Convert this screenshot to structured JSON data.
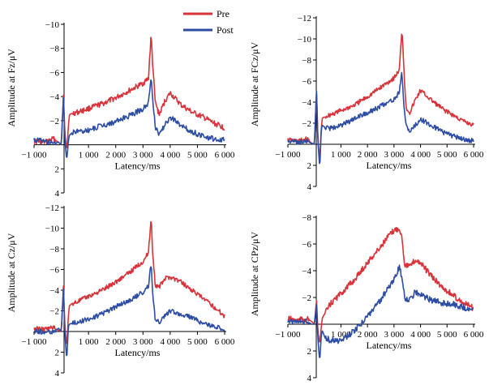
{
  "legend": {
    "items": [
      {
        "label": "Pre",
        "color": "#d8333a"
      },
      {
        "label": "Post",
        "color": "#2c4da3"
      }
    ]
  },
  "colors": {
    "pre": "#d8333a",
    "post": "#2c4da3",
    "axis": "#000000"
  },
  "chart_data": [
    {
      "type": "line",
      "panel": "Fz",
      "xlabel": "Latency/ms",
      "ylabel": "Amplitude at Fz/μV",
      "xlim": [
        -1000,
        6000
      ],
      "ylim": [
        4,
        -10
      ],
      "y_inverted": true,
      "x_ticks": [
        -1000,
        1000,
        2000,
        3000,
        4000,
        5000,
        6000
      ],
      "x_tick_labels": [
        "−1 000",
        "1 000",
        "2 000",
        "3 000",
        "4 000",
        "5 000",
        "6 000"
      ],
      "y_ticks": [
        -10,
        -8,
        -6,
        -4,
        -2,
        2,
        4
      ],
      "y_tick_labels": [
        "−10",
        "−8",
        "−6",
        "−4",
        "−2",
        "2",
        "4"
      ],
      "series": [
        {
          "name": "Pre",
          "x": [
            -1000,
            -600,
            -300,
            -100,
            0,
            80,
            130,
            200,
            260,
            300,
            400,
            600,
            1000,
            1500,
            2000,
            2500,
            3000,
            3200,
            3300,
            3350,
            3450,
            3600,
            3800,
            4000,
            4400,
            4800,
            5200,
            5600,
            6000
          ],
          "y": [
            -0.3,
            -0.2,
            -0.5,
            -0.2,
            0,
            -4.2,
            -1,
            0.5,
            -1.5,
            -2.5,
            -2.6,
            -2.7,
            -3,
            -3.4,
            -3.9,
            -4.5,
            -5.1,
            -5.5,
            -9.1,
            -7,
            -3.5,
            -2.5,
            -3.6,
            -4.3,
            -3.3,
            -2.7,
            -2.3,
            -1.8,
            -1.4
          ]
        },
        {
          "name": "Post",
          "x": [
            -1000,
            -600,
            -300,
            -100,
            0,
            80,
            130,
            200,
            260,
            300,
            400,
            600,
            1000,
            1500,
            2000,
            2500,
            3000,
            3200,
            3300,
            3350,
            3450,
            3600,
            3800,
            4000,
            4400,
            4800,
            5200,
            5600,
            6000
          ],
          "y": [
            -0.4,
            -0.3,
            -0.1,
            -0.2,
            0,
            -4,
            -0.5,
            1.3,
            -0.3,
            -0.8,
            -1,
            -1.1,
            -1.2,
            -1.6,
            -1.9,
            -2.4,
            -3,
            -3.5,
            -5.5,
            -4,
            -1.5,
            -0.9,
            -1.6,
            -2.3,
            -1.6,
            -1.1,
            -0.7,
            -0.5,
            -0.4
          ]
        }
      ]
    },
    {
      "type": "line",
      "panel": "FCz",
      "xlabel": "Latency/ms",
      "ylabel": "Amplitude at FCz/μV",
      "xlim": [
        -1000,
        6000
      ],
      "ylim": [
        4,
        -12
      ],
      "y_inverted": true,
      "x_ticks": [
        -1000,
        1000,
        2000,
        3000,
        4000,
        5000,
        6000
      ],
      "x_tick_labels": [
        "−1 000",
        "1 000",
        "2 000",
        "3 000",
        "4 000",
        "5 000",
        "6 000"
      ],
      "y_ticks": [
        -12,
        -10,
        -8,
        -6,
        -4,
        -2,
        2,
        4
      ],
      "y_tick_labels": [
        "−12",
        "−10",
        "−8",
        "−6",
        "−4",
        "−2",
        "2",
        "4"
      ],
      "series": [
        {
          "name": "Pre",
          "x": [
            -1000,
            -600,
            -300,
            -100,
            0,
            80,
            130,
            200,
            260,
            300,
            400,
            600,
            1000,
            1500,
            2000,
            2500,
            3000,
            3200,
            3300,
            3350,
            3450,
            3600,
            3800,
            4000,
            4400,
            4800,
            5200,
            5600,
            6000
          ],
          "y": [
            -0.4,
            -0.3,
            -0.5,
            -0.1,
            0,
            -5,
            -0.5,
            1.5,
            -1.5,
            -2.5,
            -2.6,
            -2.8,
            -3.2,
            -3.7,
            -4.5,
            -5.4,
            -6.3,
            -7,
            -11,
            -8.5,
            -3.5,
            -3,
            -4.2,
            -5.1,
            -4.2,
            -3.4,
            -2.8,
            -2.2,
            -1.8
          ]
        },
        {
          "name": "Post",
          "x": [
            -1000,
            -600,
            -300,
            -100,
            0,
            80,
            130,
            200,
            260,
            300,
            400,
            600,
            1000,
            1500,
            2000,
            2500,
            3000,
            3200,
            3300,
            3350,
            3450,
            3600,
            3800,
            4000,
            4400,
            4800,
            5200,
            5600,
            6000
          ],
          "y": [
            -0.3,
            -0.2,
            -0.3,
            -0.1,
            0,
            -5.2,
            -0.5,
            2.3,
            -1.4,
            -1.8,
            -1.6,
            -1.5,
            -1.8,
            -2.4,
            -3,
            -3.6,
            -4.3,
            -4.9,
            -6.8,
            -4.5,
            -1.8,
            -1.2,
            -1.8,
            -2.4,
            -1.8,
            -1.2,
            -0.8,
            -0.5,
            -0.3
          ]
        }
      ]
    },
    {
      "type": "line",
      "panel": "Cz",
      "xlabel": "Latency/ms",
      "ylabel": "Amplitude at Cz/μV",
      "xlim": [
        -1000,
        6000
      ],
      "ylim": [
        4,
        -12
      ],
      "y_inverted": true,
      "x_ticks": [
        -1000,
        1000,
        2000,
        3000,
        4000,
        5000,
        6000
      ],
      "x_tick_labels": [
        "−1 000",
        "1 000",
        "2 000",
        "3 000",
        "4 000",
        "5 000",
        "6 000"
      ],
      "y_ticks": [
        -12,
        -10,
        -8,
        -6,
        -4,
        -2,
        2,
        4
      ],
      "y_tick_labels": [
        "−12",
        "−10",
        "−8",
        "−6",
        "−4",
        "−2",
        "2",
        "4"
      ],
      "series": [
        {
          "name": "Pre",
          "x": [
            -1000,
            -600,
            -300,
            -100,
            0,
            80,
            130,
            200,
            260,
            300,
            400,
            600,
            1000,
            1500,
            2000,
            2500,
            3000,
            3200,
            3300,
            3350,
            3450,
            3600,
            3800,
            4000,
            4400,
            4800,
            5200,
            5600,
            6000
          ],
          "y": [
            -0.3,
            -0.2,
            -0.4,
            -0.1,
            0,
            -4.5,
            -0.5,
            1.5,
            -1.5,
            -2.5,
            -2.7,
            -2.9,
            -3.4,
            -4,
            -4.8,
            -5.7,
            -6.8,
            -7.6,
            -11,
            -8,
            -4.5,
            -4.3,
            -5.1,
            -5.3,
            -4.8,
            -4,
            -3.2,
            -2.4,
            -1.5
          ]
        },
        {
          "name": "Post",
          "x": [
            -1000,
            -600,
            -300,
            -100,
            0,
            80,
            130,
            200,
            260,
            300,
            400,
            600,
            1000,
            1500,
            2000,
            2500,
            3000,
            3200,
            3300,
            3350,
            3450,
            3600,
            3800,
            4000,
            4400,
            4800,
            5200,
            5600,
            6000
          ],
          "y": [
            -0.1,
            0.1,
            0,
            -0.3,
            0,
            -4.2,
            0,
            2.8,
            -0.5,
            -0.7,
            -0.8,
            -0.9,
            -1.2,
            -1.7,
            -2.4,
            -3,
            -3.8,
            -4.4,
            -6.6,
            -4,
            -1.2,
            -0.9,
            -1.5,
            -2,
            -1.7,
            -1.3,
            -0.8,
            -0.5,
            -0.2
          ]
        }
      ]
    },
    {
      "type": "line",
      "panel": "CPz",
      "xlabel": "Latency/ms",
      "ylabel": "Amplitude at CPz/μV",
      "xlim": [
        -1000,
        6000
      ],
      "ylim": [
        4,
        -8
      ],
      "y_inverted": true,
      "x_ticks": [
        -1000,
        1000,
        2000,
        3000,
        4000,
        5000,
        6000
      ],
      "x_tick_labels": [
        "−1 000",
        "1 000",
        "2 000",
        "3 000",
        "4 000",
        "5 000",
        "6 000"
      ],
      "y_ticks": [
        -8,
        -6,
        -4,
        -2,
        2,
        4
      ],
      "y_tick_labels": [
        "−8",
        "−6",
        "−4",
        "−2",
        "2",
        "4"
      ],
      "series": [
        {
          "name": "Pre",
          "x": [
            -1000,
            -600,
            -300,
            -100,
            0,
            80,
            130,
            200,
            260,
            300,
            400,
            600,
            1000,
            1500,
            2000,
            2500,
            2800,
            3000,
            3200,
            3300,
            3400,
            3600,
            3800,
            4000,
            4400,
            4800,
            5200,
            5600,
            6000
          ],
          "y": [
            -0.4,
            -0.3,
            -0.4,
            -0.2,
            0,
            -1.8,
            0.5,
            1.5,
            0.2,
            -0.5,
            -0.8,
            -1.5,
            -2.3,
            -3.3,
            -4.6,
            -5.8,
            -6.6,
            -7,
            -7.2,
            -6.5,
            -4.5,
            -4.3,
            -4.8,
            -4.6,
            -3.6,
            -2.8,
            -2.2,
            -1.6,
            -1.2
          ]
        },
        {
          "name": "Post",
          "x": [
            -1000,
            -600,
            -300,
            -100,
            0,
            80,
            130,
            200,
            260,
            300,
            400,
            600,
            1000,
            1500,
            2000,
            2500,
            2800,
            3000,
            3200,
            3300,
            3400,
            3600,
            3800,
            4000,
            4400,
            4800,
            5200,
            5600,
            6000
          ],
          "y": [
            -0.3,
            -0.2,
            -0.2,
            0,
            0,
            -1.5,
            1,
            2.8,
            0.8,
            0.5,
            1,
            1.2,
            1.3,
            0.5,
            -0.6,
            -1.8,
            -2.8,
            -3.4,
            -4.3,
            -3.5,
            -2,
            -1.8,
            -2.4,
            -2.2,
            -1.8,
            -1.6,
            -1.5,
            -1.3,
            -1
          ]
        }
      ]
    }
  ]
}
